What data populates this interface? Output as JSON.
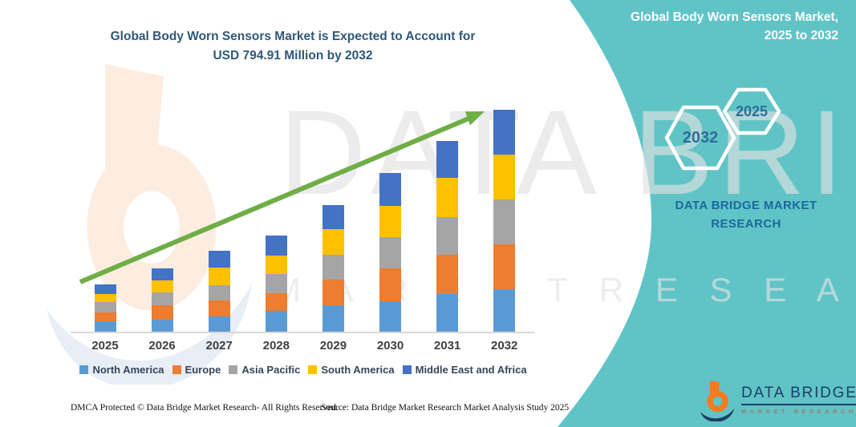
{
  "colors": {
    "panel_teal": "#60c4c7",
    "title_blue": "#2f5877",
    "arrow_green": "#6fae47",
    "axis_gray": "#d9d9d9",
    "year_label_gray": "#404040",
    "legend_text": "#36455a",
    "hex_label_blue": "#2e6e99",
    "brand_blue": "#1a699c",
    "logo_navy": "#1d3e66",
    "logo_orange": "#f47c20"
  },
  "chart": {
    "title_lines": [
      "Global Body Worn Sensors Market is Expected to Account for",
      "USD 794.91 Million by 2032"
    ]
  },
  "chart_data": {
    "type": "bar",
    "subtype": "stacked-vertical",
    "title": "Global Body Worn Sensors Market is Expected to Account for USD 794.91 Million by 2032",
    "unit": "USD Million",
    "categories": [
      "2025",
      "2026",
      "2027",
      "2028",
      "2029",
      "2030",
      "2031",
      "2032"
    ],
    "series": [
      {
        "name": "North America",
        "color": "#5b9bd5",
        "values": [
          38.9,
          45.8,
          57.3,
          76.5,
          98.2,
          110.5,
          138.3,
          154.6
        ]
      },
      {
        "name": "Europe",
        "color": "#ed7d31",
        "values": [
          32.6,
          50.4,
          57.3,
          63.9,
          90.8,
          118.5,
          138.3,
          160.3
        ]
      },
      {
        "name": "Asia Pacific",
        "color": "#a5a5a5",
        "values": [
          36.1,
          47.0,
          54.4,
          69.6,
          87.6,
          110.5,
          136.6,
          160.3
        ]
      },
      {
        "name": "South America",
        "color": "#ffc000",
        "values": [
          30.6,
          43.8,
          63.0,
          64.1,
          91.6,
          111.7,
          138.3,
          159.2
        ]
      },
      {
        "name": "Middle East and Africa",
        "color": "#4472c4",
        "values": [
          33.5,
          42.1,
          59.3,
          72.4,
          85.9,
          117.4,
          130.9,
          160.5
        ]
      }
    ],
    "totals_estimated": [
      171.7,
      229.1,
      291.3,
      346.5,
      454.1,
      568.6,
      682.4,
      794.91
    ],
    "final_year_total_label": "USD 794.91 Million by 2032",
    "y_axis": "hidden",
    "grid": "off",
    "legend_position": "bottom",
    "annotations": [
      "green upward trend arrow across bars"
    ],
    "note": "segment values estimated from bar pixel heights; only 794.91 is printed on the graphic"
  },
  "panel": {
    "heading_lines": [
      "Global Body Worn Sensors Market,",
      "2025 to 2032"
    ],
    "hexagon_labels": [
      "2032",
      "2025"
    ],
    "brand_lines": [
      "DATA BRIDGE MARKET",
      "RESEARCH"
    ],
    "logo": {
      "name": "DATA BRIDGE",
      "subtext": "MARKET RESEARCH"
    }
  },
  "watermark": {
    "line1": "DATA BRIDGE",
    "line2": "M A R K E T   R E S E A R C H"
  },
  "footer": {
    "left": "DMCA Protected © Data Bridge Market Research-  All Rights Reserved.",
    "right": "Source: Data Bridge Market Research  Market Analysis Study 2025"
  }
}
